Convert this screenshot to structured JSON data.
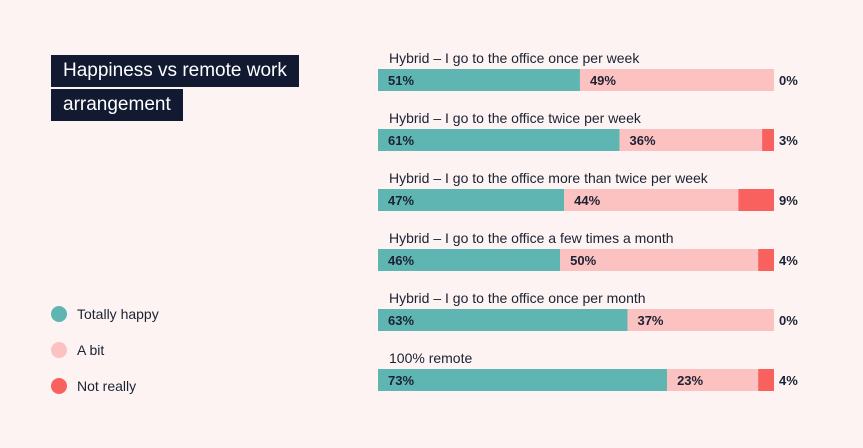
{
  "title": {
    "line1": "Happiness vs remote work",
    "line2": "arrangement"
  },
  "legend": [
    {
      "label": "Totally happy",
      "color": "#5fb5b1"
    },
    {
      "label": "A bit",
      "color": "#fbc2c1"
    },
    {
      "label": "Not really",
      "color": "#f8615e"
    }
  ],
  "chart_data": {
    "type": "bar",
    "orientation": "horizontal-stacked",
    "title": "Happiness vs remote work arrangement",
    "categories": [
      "Hybrid – I go to the office once per week",
      "Hybrid – I go to the office twice per week",
      "Hybrid – I go to the office more than twice per week",
      "Hybrid – I go to the office a few times a month",
      "Hybrid – I go to the office once per month",
      "100% remote"
    ],
    "series": [
      {
        "name": "Totally happy",
        "color": "#5fb5b1",
        "values": [
          51,
          61,
          47,
          46,
          63,
          73
        ]
      },
      {
        "name": "A bit",
        "color": "#fbc2c1",
        "values": [
          49,
          36,
          44,
          50,
          37,
          23
        ]
      },
      {
        "name": "Not really",
        "color": "#f8615e",
        "values": [
          0,
          3,
          9,
          4,
          0,
          4
        ]
      }
    ],
    "value_suffix": "%",
    "legend_position": "left",
    "grid": false
  }
}
